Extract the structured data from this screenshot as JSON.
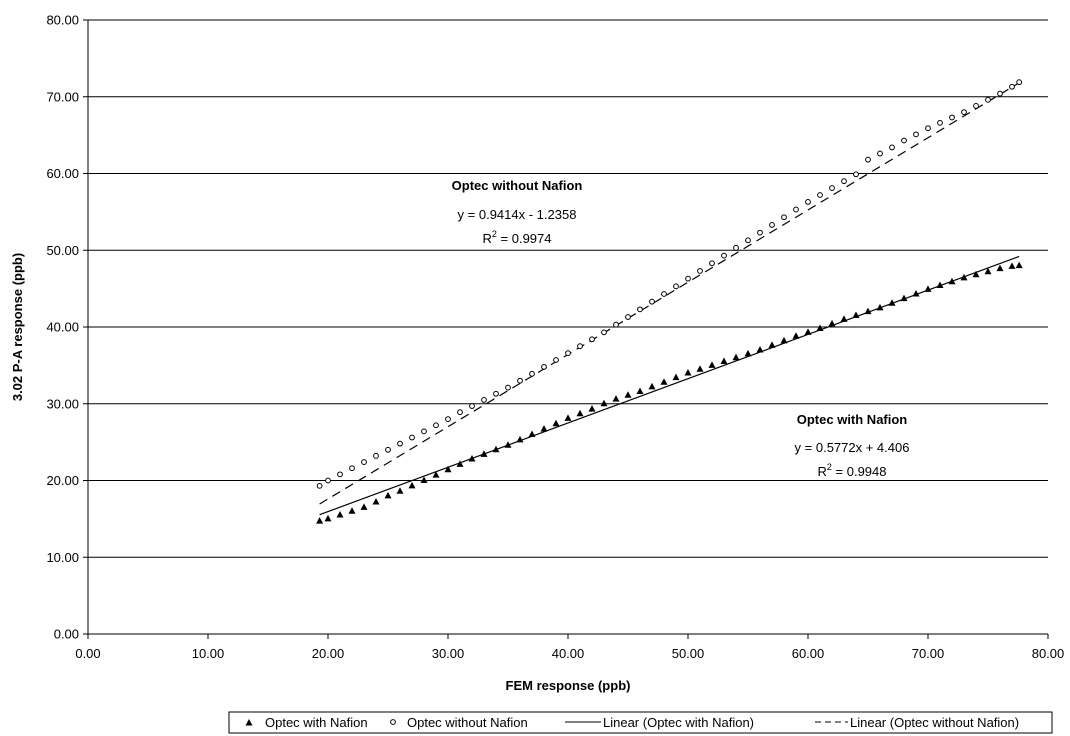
{
  "chart_data": {
    "type": "scatter",
    "xlabel": "FEM response (ppb)",
    "ylabel": "3.02 P-A response (ppb)",
    "xlim": [
      0,
      80
    ],
    "ylim": [
      0,
      80
    ],
    "xticks": [
      0,
      10,
      20,
      30,
      40,
      50,
      60,
      70,
      80
    ],
    "yticks": [
      0,
      10,
      20,
      30,
      40,
      50,
      60,
      70,
      80
    ],
    "xtick_labels": [
      "0.00",
      "10.00",
      "20.00",
      "30.00",
      "40.00",
      "50.00",
      "60.00",
      "70.00",
      "80.00"
    ],
    "ytick_labels": [
      "0.00",
      "10.00",
      "20.00",
      "30.00",
      "40.00",
      "50.00",
      "60.00",
      "70.00",
      "80.00"
    ],
    "grid": "horizontal major gridlines",
    "legend_position": "bottom",
    "series": [
      {
        "name": "Optec with Nafion",
        "marker": "filled-triangle",
        "color": "#000000",
        "x": [
          19.3,
          20.0,
          21.0,
          22.0,
          23.0,
          24.0,
          25.0,
          26.0,
          27.0,
          28.0,
          29.0,
          30.0,
          31.0,
          32.0,
          33.0,
          34.0,
          35.0,
          36.0,
          37.0,
          38.0,
          39.0,
          40.0,
          41.0,
          42.0,
          43.0,
          44.0,
          45.0,
          46.0,
          47.0,
          48.0,
          49.0,
          50.0,
          51.0,
          52.0,
          53.0,
          54.0,
          55.0,
          56.0,
          57.0,
          58.0,
          59.0,
          60.0,
          61.0,
          62.0,
          63.0,
          64.0,
          65.0,
          66.0,
          67.0,
          68.0,
          69.0,
          70.0,
          71.0,
          72.0,
          73.0,
          74.0,
          75.0,
          76.0,
          77.0,
          77.6
        ],
        "y": [
          14.7,
          15.0,
          15.5,
          16.0,
          16.5,
          17.2,
          18.0,
          18.6,
          19.3,
          20.0,
          20.7,
          21.4,
          22.1,
          22.8,
          23.4,
          24.0,
          24.6,
          25.3,
          26.0,
          26.7,
          27.4,
          28.1,
          28.7,
          29.3,
          30.0,
          30.6,
          31.1,
          31.6,
          32.2,
          32.8,
          33.4,
          34.0,
          34.5,
          35.0,
          35.5,
          36.0,
          36.5,
          37.0,
          37.6,
          38.2,
          38.8,
          39.3,
          39.8,
          40.4,
          41.0,
          41.5,
          42.0,
          42.5,
          43.1,
          43.7,
          44.3,
          44.9,
          45.4,
          45.9,
          46.4,
          46.8,
          47.2,
          47.6,
          47.9,
          48.0
        ]
      },
      {
        "name": "Optec without Nafion",
        "marker": "open-circle",
        "color": "#000000",
        "x": [
          19.3,
          20.0,
          21.0,
          22.0,
          23.0,
          24.0,
          25.0,
          26.0,
          27.0,
          28.0,
          29.0,
          30.0,
          31.0,
          32.0,
          33.0,
          34.0,
          35.0,
          36.0,
          37.0,
          38.0,
          39.0,
          40.0,
          41.0,
          42.0,
          43.0,
          44.0,
          45.0,
          46.0,
          47.0,
          48.0,
          49.0,
          50.0,
          51.0,
          52.0,
          53.0,
          54.0,
          55.0,
          56.0,
          57.0,
          58.0,
          59.0,
          60.0,
          61.0,
          62.0,
          63.0,
          64.0,
          65.0,
          66.0,
          67.0,
          68.0,
          69.0,
          70.0,
          71.0,
          72.0,
          73.0,
          74.0,
          75.0,
          76.0,
          77.0,
          77.6
        ],
        "y": [
          19.3,
          20.0,
          20.8,
          21.6,
          22.4,
          23.2,
          24.0,
          24.8,
          25.6,
          26.4,
          27.2,
          28.0,
          28.9,
          29.7,
          30.5,
          31.3,
          32.1,
          33.0,
          33.9,
          34.8,
          35.7,
          36.6,
          37.5,
          38.4,
          39.3,
          40.3,
          41.3,
          42.3,
          43.3,
          44.3,
          45.3,
          46.3,
          47.3,
          48.3,
          49.3,
          50.3,
          51.3,
          52.3,
          53.3,
          54.3,
          55.3,
          56.3,
          57.2,
          58.1,
          59.0,
          59.9,
          61.8,
          62.6,
          63.4,
          64.3,
          65.1,
          65.9,
          66.6,
          67.3,
          68.0,
          68.8,
          69.6,
          70.4,
          71.3,
          71.9
        ]
      }
    ],
    "trendlines": [
      {
        "name": "Linear (Optec with Nafion)",
        "slope": 0.5772,
        "intercept": 4.406,
        "x_range": [
          19.3,
          77.6
        ],
        "style": "solid"
      },
      {
        "name": "Linear (Optec without Nafion)",
        "slope": 0.9414,
        "intercept": -1.2358,
        "x_range": [
          19.3,
          77.6
        ],
        "style": "dashed"
      }
    ],
    "annotations": [
      {
        "title": "Optec without Nafion",
        "equation": "y = 0.9414x - 1.2358",
        "r2_label": "R",
        "r2_sup": "2",
        "r2_value": " = 0.9974"
      },
      {
        "title": "Optec with Nafion",
        "equation": "y = 0.5772x + 4.406",
        "r2_label": "R",
        "r2_sup": "2",
        "r2_value": " = 0.9948"
      }
    ],
    "legend": [
      {
        "label": "Optec with Nafion",
        "symbol": "filled-triangle"
      },
      {
        "label": "Optec without Nafion",
        "symbol": "open-circle"
      },
      {
        "label": "Linear (Optec with Nafion)",
        "symbol": "solid-line"
      },
      {
        "label": "Linear (Optec without Nafion)",
        "symbol": "dashed-line"
      }
    ]
  }
}
